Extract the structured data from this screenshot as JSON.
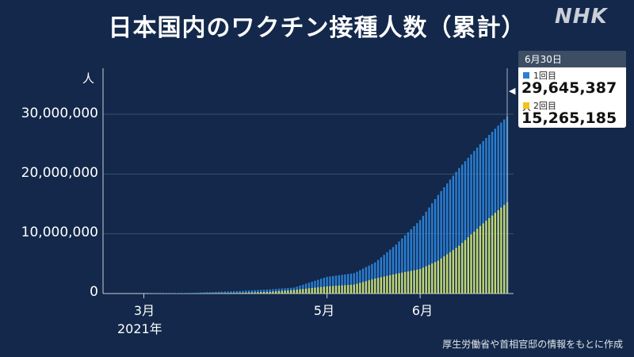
{
  "title": "日本国内のワクチン接種人数（累計）",
  "logo": "NHK",
  "source": "厚生労働省や首相官邸の情報をもとに作成",
  "callout": {
    "date": "6月30日",
    "first_label": "1回目",
    "first_value": "29,645,387",
    "second_label": "2回目",
    "second_value": "15,265,185",
    "unit": "人"
  },
  "colors": {
    "first_dose": "#2a7fd4",
    "second_dose": "#c6d86e",
    "background": "#13284a",
    "grid": "#3a4f70"
  },
  "chart_data": {
    "type": "bar",
    "stacking": "overlay",
    "title": "日本国内のワクチン接種人数（累計）",
    "ylabel": "人",
    "ylim": [
      0,
      30000000
    ],
    "yticks": [
      "0",
      "10,000,000",
      "20,000,000",
      "30,000,000"
    ],
    "xticks": [
      "3月",
      "5月",
      "6月"
    ],
    "year_label": "2021年",
    "x_range": [
      "2021-02-17",
      "2021-06-30"
    ],
    "grid": true,
    "x": [
      "2021-02-17",
      "2021-03-01",
      "2021-03-15",
      "2021-04-01",
      "2021-04-12",
      "2021-04-20",
      "2021-05-01",
      "2021-05-10",
      "2021-05-17",
      "2021-05-24",
      "2021-06-01",
      "2021-06-07",
      "2021-06-14",
      "2021-06-21",
      "2021-06-30"
    ],
    "series": [
      {
        "name": "1回目",
        "values": [
          0,
          20000,
          80000,
          400000,
          700000,
          1000000,
          2800000,
          3400000,
          5200000,
          8200000,
          12300000,
          16500000,
          21000000,
          25000000,
          29645387
        ]
      },
      {
        "name": "2回目",
        "values": [
          0,
          0,
          0,
          100000,
          300000,
          600000,
          1200000,
          1500000,
          2500000,
          3300000,
          4100000,
          5500000,
          8000000,
          11300000,
          15265185
        ]
      }
    ]
  }
}
